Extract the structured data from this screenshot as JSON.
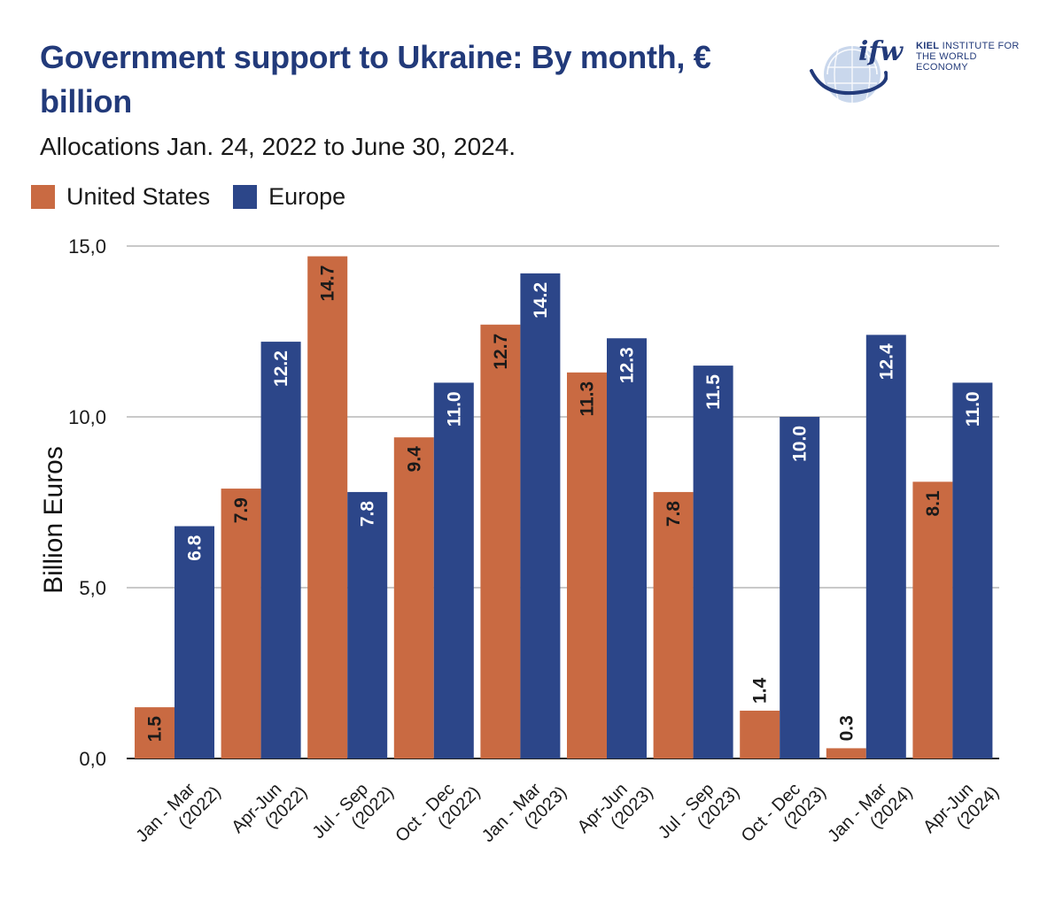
{
  "header": {
    "title": "Government support to Ukraine: By month, € billion",
    "subtitle": "Allocations Jan. 24, 2022 to June 30, 2024."
  },
  "logo": {
    "mark": "ifw",
    "line1_bold": "KIEL",
    "line1_rest": " INSTITUTE FOR",
    "line2": "THE WORLD ECONOMY",
    "icon": "globe-icon"
  },
  "legend": [
    {
      "label": "United States",
      "color": "#c96a42"
    },
    {
      "label": "Europe",
      "color": "#2c4689"
    }
  ],
  "chart_data": {
    "type": "bar",
    "title": "Government support to Ukraine: By month, € billion",
    "subtitle": "Allocations Jan. 24, 2022 to June 30, 2024.",
    "ylabel": "Billion Euros",
    "xlabel": "",
    "ylim": [
      0,
      15
    ],
    "yticks": [
      0,
      5,
      10,
      15
    ],
    "ytick_labels": [
      "0,0",
      "5,0",
      "10,0",
      "15,0"
    ],
    "grid": true,
    "legend_position": "top-left",
    "categories": [
      [
        "Jan - Mar",
        "(2022)"
      ],
      [
        "Apr-Jun",
        "(2022)"
      ],
      [
        "Jul - Sep",
        "(2022)"
      ],
      [
        "Oct - Dec",
        "(2022)"
      ],
      [
        "Jan - Mar",
        "(2023)"
      ],
      [
        "Apr-Jun",
        "(2023)"
      ],
      [
        "Jul - Sep",
        "(2023)"
      ],
      [
        "Oct - Dec",
        "(2023)"
      ],
      [
        "Jan - Mar",
        "(2024)"
      ],
      [
        "Apr-Jun",
        "(2024)"
      ]
    ],
    "series": [
      {
        "name": "United States",
        "color": "#c96a42",
        "label_color": "#1a1a1a",
        "values": [
          1.5,
          7.9,
          14.7,
          9.4,
          12.7,
          11.3,
          7.8,
          1.4,
          0.3,
          8.1
        ],
        "labels": [
          "1.5",
          "7.9",
          "14.7",
          "9.4",
          "12.7",
          "11.3",
          "7.8",
          "1.4",
          "0.3",
          "8.1"
        ]
      },
      {
        "name": "Europe",
        "color": "#2c4689",
        "label_color": "#ffffff",
        "values": [
          6.8,
          12.2,
          7.8,
          11.0,
          14.2,
          12.3,
          11.5,
          10.0,
          12.4,
          11.0
        ],
        "labels": [
          "6.8",
          "12.2",
          "7.8",
          "11.0",
          "14.2",
          "12.3",
          "11.5",
          "10.0",
          "12.4",
          "11.0"
        ]
      }
    ]
  }
}
